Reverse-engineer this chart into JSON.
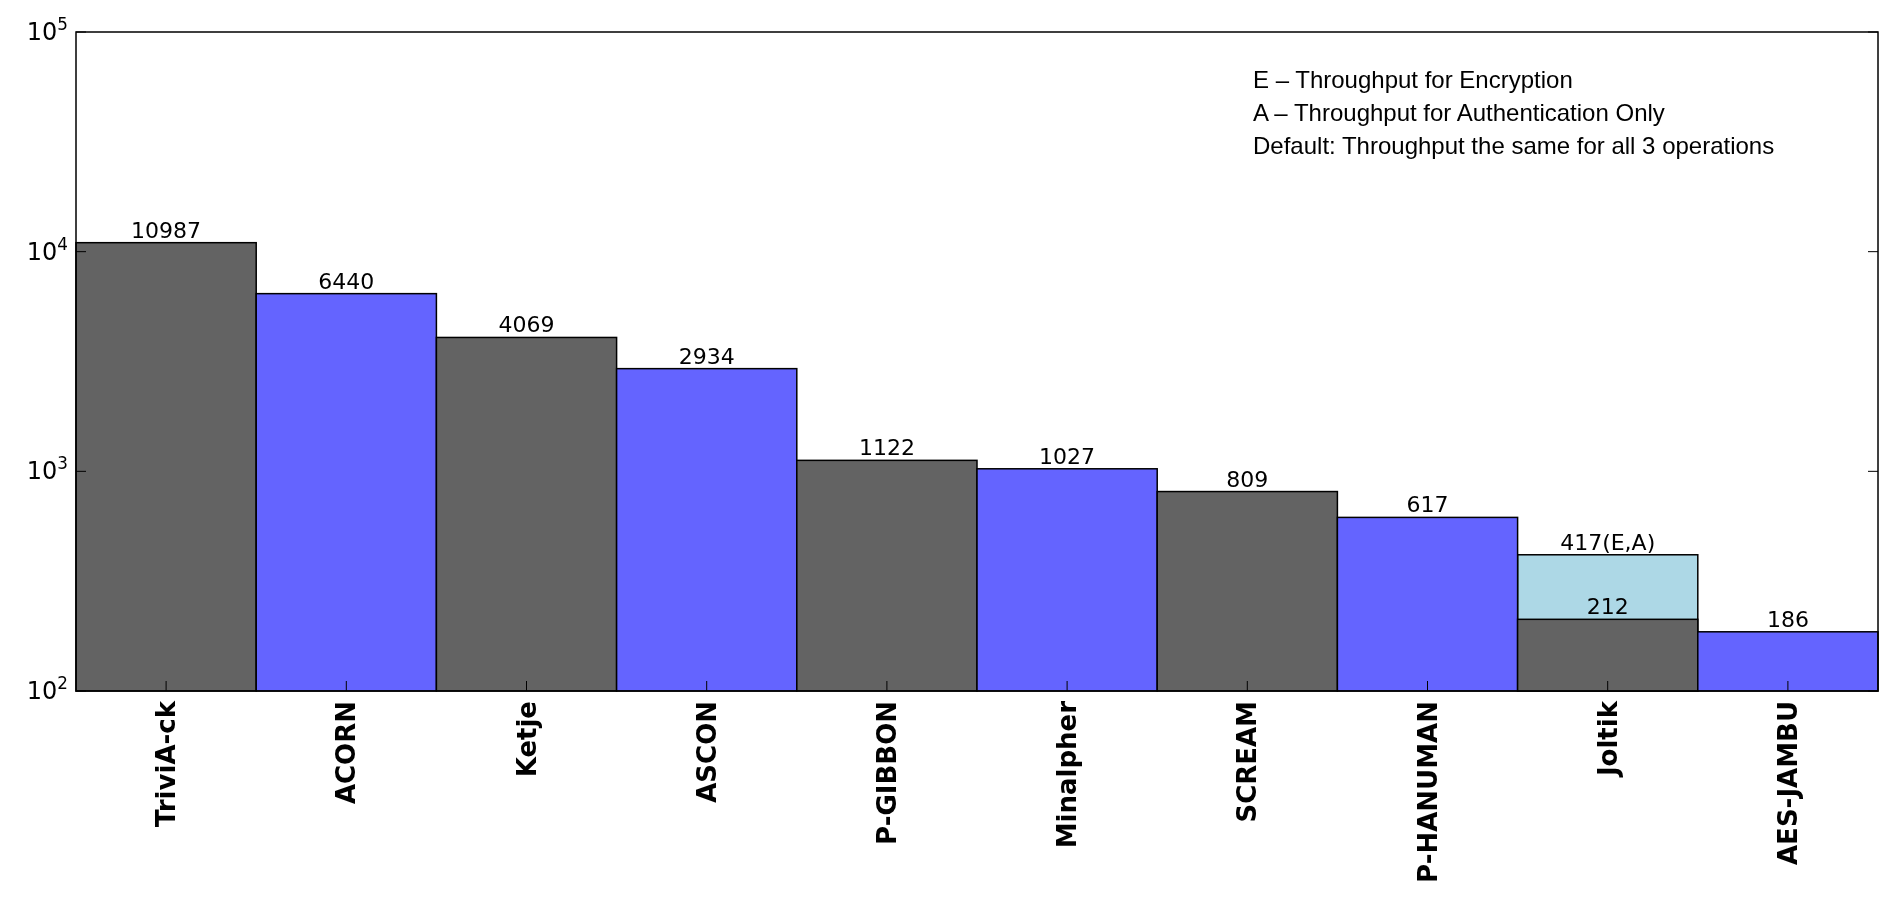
{
  "chart_data": {
    "type": "bar",
    "categories": [
      "TriviA-ck",
      "ACORN",
      "Ketje",
      "ASCON",
      "P-GIBBON",
      "Minalpher",
      "SCREAM",
      "P-HANUMAN",
      "Joltik",
      "AES-JAMBU"
    ],
    "series": [
      {
        "color": "#add8e6",
        "values": [
          null,
          null,
          null,
          null,
          null,
          null,
          null,
          null,
          417,
          null
        ],
        "value_labels": [
          null,
          null,
          null,
          null,
          null,
          null,
          null,
          null,
          "417(E,A)",
          null
        ]
      },
      {
        "colors": [
          "#636363",
          "#6464ff",
          "#636363",
          "#6464ff",
          "#636363",
          "#6464ff",
          "#636363",
          "#6464ff",
          "#636363",
          "#6464ff"
        ],
        "values": [
          10987,
          6440,
          4069,
          2934,
          1122,
          1027,
          809,
          617,
          212,
          186
        ],
        "value_labels": [
          "10987",
          "6440",
          "4069",
          "2934",
          "1122",
          "1027",
          "809",
          "617",
          "212",
          "186"
        ]
      }
    ],
    "log": "y",
    "ylim": [
      100,
      100000
    ],
    "yticks": [
      {
        "value": 100,
        "label": "10$^{2}$"
      },
      {
        "value": 1000,
        "label": "10$^{3}$"
      },
      {
        "value": 10000,
        "label": "10$^{4}$"
      },
      {
        "value": 100000,
        "label": "10$^{5}$"
      }
    ],
    "annotations": [
      "E – Throughput for Encryption",
      "A – Throughput for Authentication Only",
      "Default: Throughput the same for all 3 operations"
    ]
  }
}
